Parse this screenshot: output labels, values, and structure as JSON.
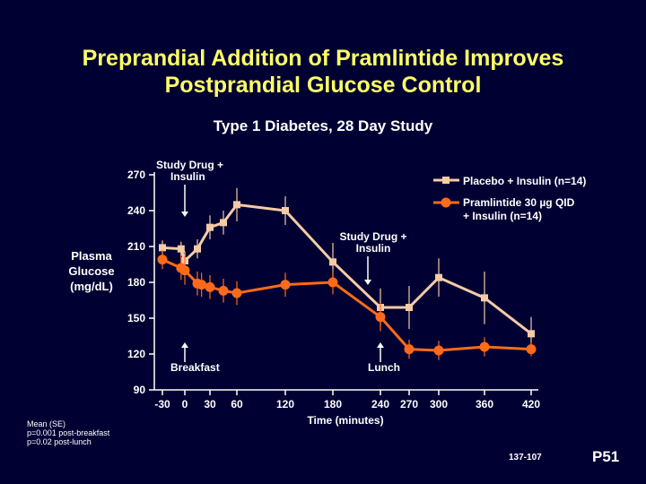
{
  "slide": {
    "title_line1": "Preprandial Addition of Pramlintide Improves",
    "title_line2": "Postprandial Glucose Control",
    "subtitle": "Type 1 Diabetes, 28 Day Study",
    "footnote": [
      "Mean (SE)",
      "p=0.001 post-breakfast",
      "p=0.02 post-lunch"
    ],
    "slide_code": "137-107",
    "slide_number": "P51"
  },
  "colors": {
    "background": "#000033",
    "title": "#ffff66",
    "placebo": "#f5cba7",
    "pramlintide": "#ff6a1a",
    "axis": "#ffffff"
  },
  "chart_data": {
    "type": "line",
    "title": "Type 1 Diabetes, 28 Day Study",
    "xlabel": "Time (minutes)",
    "ylabel_lines": [
      "Plasma",
      "Glucose",
      "(mg/dL)"
    ],
    "x_ticks": [
      "-30",
      "0",
      "30",
      "60",
      "120",
      "180",
      "240",
      "270",
      "300",
      "360",
      "420"
    ],
    "y_ticks": [
      90,
      120,
      150,
      180,
      210,
      240,
      270
    ],
    "ylim": [
      90,
      270
    ],
    "legend_position": "top-right",
    "series": [
      {
        "name": "Placebo + Insulin (n=14)",
        "color": "#f5cba7",
        "marker": "square",
        "x": [
          -30,
          -5,
          0,
          15,
          30,
          45,
          60,
          120,
          180,
          240,
          270,
          300,
          360,
          420
        ],
        "y": [
          209,
          208,
          198,
          208,
          226,
          230,
          245,
          240,
          197,
          159,
          159,
          184,
          167,
          137
        ],
        "error": [
          6,
          6,
          8,
          8,
          10,
          10,
          14,
          12,
          16,
          16,
          18,
          16,
          22,
          14
        ]
      },
      {
        "name": "Pramlintide 30 µg QID + Insulin (n=14)",
        "color": "#ff6a1a",
        "marker": "circle",
        "x": [
          -30,
          -5,
          0,
          15,
          20,
          30,
          45,
          60,
          120,
          180,
          240,
          270,
          300,
          360,
          420
        ],
        "y": [
          199,
          192,
          190,
          179,
          178,
          176,
          173,
          171,
          178,
          180,
          151,
          124,
          123,
          126,
          124
        ],
        "error": [
          8,
          10,
          12,
          10,
          10,
          10,
          10,
          10,
          10,
          10,
          12,
          8,
          8,
          8,
          6
        ]
      }
    ],
    "annotations": [
      {
        "text": "Study Drug +\nInsulin",
        "at": 0
      },
      {
        "text": "Breakfast",
        "at": 0
      },
      {
        "text": "Study Drug +\nInsulin",
        "at": 240
      },
      {
        "text": "Lunch",
        "at": 240
      }
    ]
  }
}
